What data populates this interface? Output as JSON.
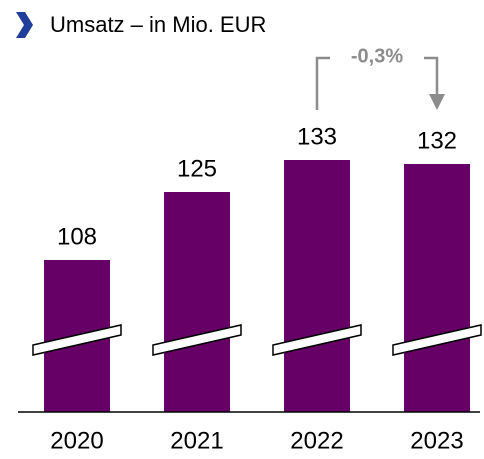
{
  "chart_data": {
    "type": "bar",
    "title": "Umsatz – in Mio. EUR",
    "categories": [
      "2020",
      "2021",
      "2022",
      "2023"
    ],
    "values": [
      108,
      125,
      133,
      132
    ],
    "color": "#660066",
    "ylim": [
      70,
      140
    ],
    "annotations": [
      "-0,3%"
    ]
  }
}
